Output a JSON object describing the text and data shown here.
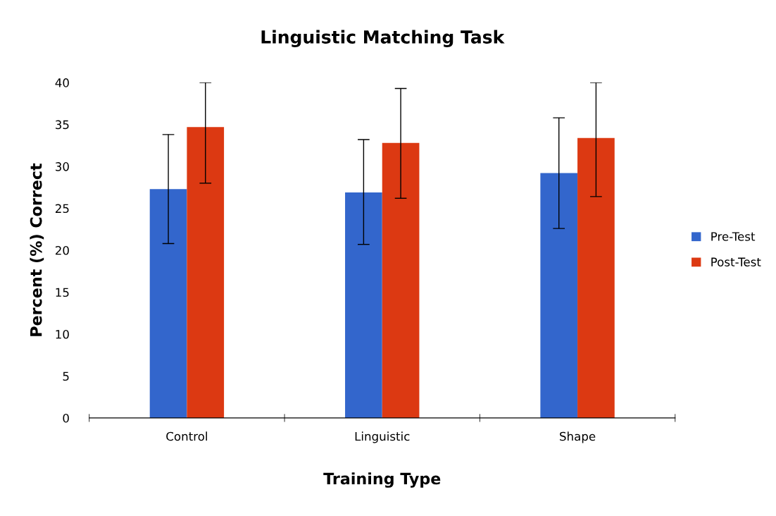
{
  "chart_data": {
    "type": "bar",
    "title": "Linguistic Matching Task",
    "xlabel": "Training Type",
    "ylabel": "Percent (%) Correct",
    "categories": [
      "Control",
      "Linguistic",
      "Shape"
    ],
    "series": [
      {
        "name": "Pre-Test",
        "color": "#3366cc",
        "values": [
          27.3,
          26.9,
          29.2
        ],
        "errors": [
          [
            20.8,
            33.8
          ],
          [
            20.7,
            33.2
          ],
          [
            22.6,
            35.8
          ]
        ]
      },
      {
        "name": "Post-Test",
        "color": "#dc3912",
        "values": [
          34.7,
          32.8,
          33.4
        ],
        "errors": [
          [
            28.0,
            40
          ],
          [
            26.2,
            39.3
          ],
          [
            26.4,
            40
          ]
        ]
      }
    ],
    "ylim": [
      0,
      40
    ],
    "yticks": [
      0,
      5,
      10,
      15,
      20,
      25,
      30,
      35,
      40
    ],
    "grid": false,
    "legend": "right"
  }
}
